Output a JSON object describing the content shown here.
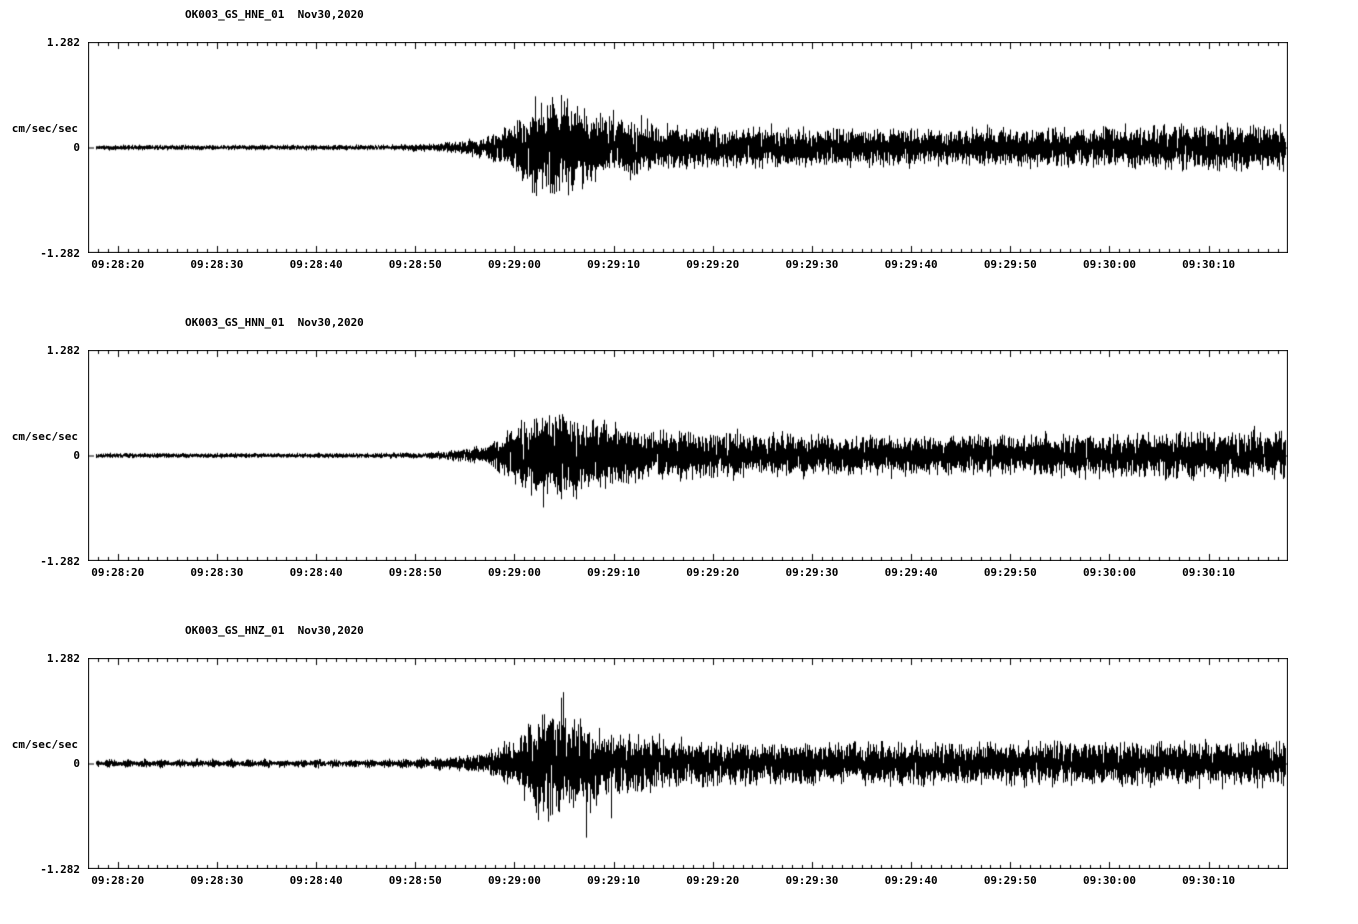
{
  "page": {
    "background": "#ffffff",
    "trace_color": "#000000"
  },
  "chart_data": [
    {
      "type": "line",
      "subtype": "seismogram",
      "title": "OK003_GS_HNE_01  Nov30,2020",
      "ylabel": "cm/sec/sec",
      "yticks": [
        "1.282",
        "0",
        "-1.282"
      ],
      "ylim": [
        -1.282,
        1.282
      ],
      "x_start": "09:28:17",
      "x_end": "09:30:18",
      "x_tick_labels": [
        "09:28:20",
        "09:28:30",
        "09:28:40",
        "09:28:50",
        "09:29:00",
        "09:29:10",
        "09:29:20",
        "09:29:30",
        "09:29:40",
        "09:29:50",
        "09:30:00",
        "09:30:10"
      ],
      "tick_interval_sec": 10,
      "envelope": [
        [
          0,
          0.032
        ],
        [
          30,
          0.035
        ],
        [
          36,
          0.06
        ],
        [
          40,
          0.13
        ],
        [
          43,
          0.3
        ],
        [
          45,
          0.55
        ],
        [
          47,
          0.62
        ],
        [
          49,
          0.5
        ],
        [
          53,
          0.38
        ],
        [
          58,
          0.28
        ],
        [
          65,
          0.25
        ],
        [
          75,
          0.23
        ],
        [
          85,
          0.22
        ],
        [
          95,
          0.24
        ],
        [
          105,
          0.26
        ],
        [
          115,
          0.27
        ],
        [
          121,
          0.28
        ]
      ],
      "spike_factor": 1.5,
      "pre_event_modulation": false,
      "seed": 11
    },
    {
      "type": "line",
      "subtype": "seismogram",
      "title": "OK003_GS_HNN_01  Nov30,2020",
      "ylabel": "cm/sec/sec",
      "yticks": [
        "1.282",
        "0",
        "-1.282"
      ],
      "ylim": [
        -1.282,
        1.282
      ],
      "x_start": "09:28:17",
      "x_end": "09:30:18",
      "x_tick_labels": [
        "09:28:20",
        "09:28:30",
        "09:28:40",
        "09:28:50",
        "09:29:00",
        "09:29:10",
        "09:29:20",
        "09:29:30",
        "09:29:40",
        "09:29:50",
        "09:30:00",
        "09:30:10"
      ],
      "tick_interval_sec": 10,
      "envelope": [
        [
          0,
          0.03
        ],
        [
          30,
          0.032
        ],
        [
          36,
          0.05
        ],
        [
          40,
          0.12
        ],
        [
          43,
          0.32
        ],
        [
          45,
          0.5
        ],
        [
          46.5,
          0.58
        ],
        [
          48,
          0.52
        ],
        [
          52,
          0.4
        ],
        [
          57,
          0.3
        ],
        [
          65,
          0.27
        ],
        [
          75,
          0.25
        ],
        [
          85,
          0.24
        ],
        [
          95,
          0.25
        ],
        [
          105,
          0.27
        ],
        [
          115,
          0.29
        ],
        [
          121,
          0.3
        ]
      ],
      "spike_factor": 1.5,
      "pre_event_modulation": false,
      "seed": 22
    },
    {
      "type": "line",
      "subtype": "seismogram",
      "title": "OK003_GS_HNZ_01  Nov30,2020",
      "ylabel": "cm/sec/sec",
      "yticks": [
        "1.282",
        "0",
        "-1.282"
      ],
      "ylim": [
        -1.282,
        1.282
      ],
      "x_start": "09:28:17",
      "x_end": "09:30:18",
      "x_tick_labels": [
        "09:28:20",
        "09:28:30",
        "09:28:40",
        "09:28:50",
        "09:29:00",
        "09:29:10",
        "09:29:20",
        "09:29:30",
        "09:29:40",
        "09:29:50",
        "09:30:00",
        "09:30:10"
      ],
      "tick_interval_sec": 10,
      "envelope": [
        [
          0,
          0.045
        ],
        [
          30,
          0.045
        ],
        [
          36,
          0.07
        ],
        [
          40,
          0.14
        ],
        [
          43,
          0.3
        ],
        [
          45,
          0.55
        ],
        [
          47,
          0.65
        ],
        [
          49,
          0.52
        ],
        [
          53,
          0.4
        ],
        [
          58,
          0.3
        ],
        [
          65,
          0.27
        ],
        [
          75,
          0.26
        ],
        [
          85,
          0.25
        ],
        [
          95,
          0.26
        ],
        [
          105,
          0.27
        ],
        [
          115,
          0.28
        ],
        [
          121,
          0.29
        ]
      ],
      "spike_factor": 1.9,
      "pre_event_modulation": true,
      "seed": 33
    }
  ]
}
